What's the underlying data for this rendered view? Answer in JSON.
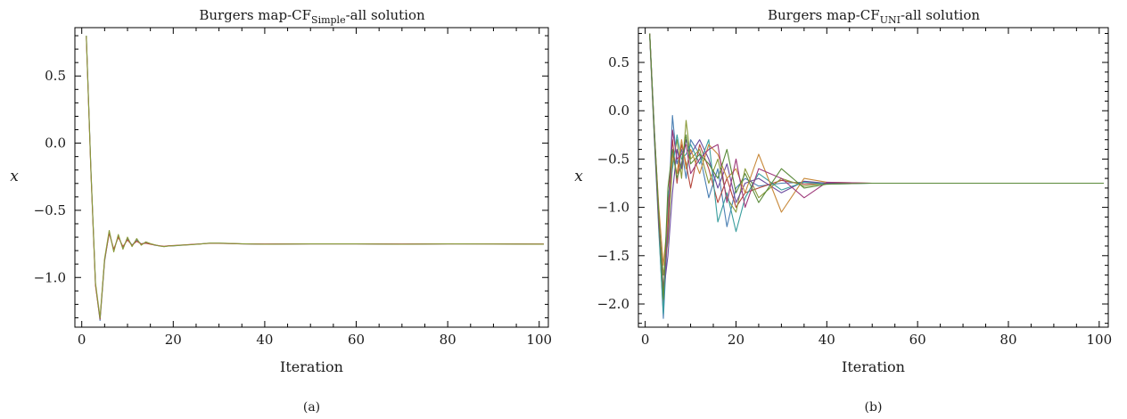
{
  "charts": [
    {
      "title_prefix": "Burgers map-CF",
      "title_sub": "Simple",
      "title_suffix": "-all solution",
      "caption": "(a)"
    },
    {
      "title_prefix": "Burgers map-CF",
      "title_sub": "UNI",
      "title_suffix": "-all solution",
      "caption": "(b)"
    }
  ],
  "chart_data": [
    {
      "type": "line",
      "title": "Burgers map-CFSimple-all solution",
      "xlabel": "Iteration",
      "ylabel": "x",
      "xlim": [
        -1.5,
        102
      ],
      "ylim": [
        -1.37,
        0.86
      ],
      "xticks": [
        0,
        20,
        40,
        60,
        80,
        100
      ],
      "xtick_labels": [
        "0",
        "20",
        "40",
        "60",
        "80",
        "100"
      ],
      "yticks": [
        0.5,
        0.0,
        -0.5,
        -1.0
      ],
      "ytick_labels": [
        "0.5",
        "0.0",
        "−0.5",
        "−1.0"
      ],
      "grid": false,
      "legend": "none",
      "series": [
        {
          "color": "#4a7fb3",
          "x": [
            1,
            2,
            3,
            4,
            5,
            6,
            7,
            8,
            9,
            10,
            11,
            12,
            13,
            14,
            15,
            16,
            17,
            18,
            19,
            20,
            22,
            24,
            26,
            28,
            30,
            35,
            40,
            50,
            60,
            70,
            80,
            90,
            101
          ],
          "y": [
            0.8,
            -0.2,
            -1.05,
            -1.32,
            -0.88,
            -0.66,
            -0.8,
            -0.69,
            -0.78,
            -0.71,
            -0.76,
            -0.72,
            -0.75,
            -0.74,
            -0.75,
            -0.76,
            -0.765,
            -0.77,
            -0.765,
            -0.765,
            -0.76,
            -0.755,
            -0.75,
            -0.745,
            -0.745,
            -0.75,
            -0.752,
            -0.75,
            -0.75,
            -0.752,
            -0.75,
            -0.75,
            -0.752
          ]
        },
        {
          "color": "#b5463c",
          "x": [
            1,
            2,
            3,
            4,
            5,
            6,
            7,
            8,
            9,
            10,
            11,
            12,
            13,
            14,
            15,
            16,
            17,
            18,
            19,
            20,
            22,
            24,
            26,
            28,
            30,
            35,
            40,
            50,
            60,
            70,
            80,
            90,
            101
          ],
          "y": [
            0.79,
            -0.22,
            -1.06,
            -1.31,
            -0.87,
            -0.67,
            -0.79,
            -0.7,
            -0.77,
            -0.72,
            -0.76,
            -0.73,
            -0.75,
            -0.745,
            -0.752,
            -0.758,
            -0.764,
            -0.768,
            -0.764,
            -0.762,
            -0.758,
            -0.754,
            -0.75,
            -0.746,
            -0.746,
            -0.75,
            -0.751,
            -0.75,
            -0.75,
            -0.751,
            -0.75,
            -0.75,
            -0.751
          ]
        },
        {
          "color": "#8a9a3a",
          "x": [
            1,
            2,
            3,
            4,
            5,
            6,
            7,
            8,
            9,
            10,
            11,
            12,
            13,
            14,
            15,
            16,
            17,
            18,
            19,
            20,
            22,
            24,
            26,
            28,
            30,
            35,
            40,
            50,
            60,
            70,
            80,
            90,
            101
          ],
          "y": [
            0.8,
            -0.21,
            -1.04,
            -1.3,
            -0.86,
            -0.65,
            -0.81,
            -0.68,
            -0.79,
            -0.7,
            -0.77,
            -0.71,
            -0.76,
            -0.735,
            -0.748,
            -0.757,
            -0.766,
            -0.771,
            -0.766,
            -0.764,
            -0.759,
            -0.756,
            -0.751,
            -0.744,
            -0.744,
            -0.749,
            -0.753,
            -0.75,
            -0.75,
            -0.753,
            -0.75,
            -0.751,
            -0.752
          ]
        }
      ]
    },
    {
      "type": "line",
      "title": "Burgers map-CFUNI-all solution",
      "xlabel": "Iteration",
      "ylabel": "x",
      "xlim": [
        -1.5,
        102
      ],
      "ylim": [
        -2.24,
        0.86
      ],
      "xticks": [
        0,
        20,
        40,
        60,
        80,
        100
      ],
      "xtick_labels": [
        "0",
        "20",
        "40",
        "60",
        "80",
        "100"
      ],
      "yticks": [
        0.5,
        0.0,
        -0.5,
        -1.0,
        -1.5,
        -2.0
      ],
      "ytick_labels": [
        "0.5",
        "0.0",
        "−0.5",
        "−1.0",
        "−1.5",
        "−2.0"
      ],
      "grid": false,
      "legend": "none",
      "series": [
        {
          "color": "#4a7fb3",
          "x": [
            1,
            2,
            3,
            4,
            5,
            6,
            7,
            8,
            9,
            10,
            12,
            14,
            16,
            18,
            20,
            22,
            25,
            30,
            35,
            40,
            50,
            60,
            80,
            101
          ],
          "y": [
            0.8,
            -0.2,
            -1.2,
            -2.15,
            -1.2,
            -0.05,
            -0.55,
            -0.4,
            -0.7,
            -0.3,
            -0.45,
            -0.9,
            -0.6,
            -1.2,
            -0.8,
            -0.7,
            -0.78,
            -0.75,
            -0.74,
            -0.75,
            -0.75,
            -0.75,
            -0.75,
            -0.75
          ]
        },
        {
          "color": "#b5463c",
          "x": [
            1,
            2,
            3,
            4,
            5,
            6,
            7,
            8,
            9,
            10,
            12,
            14,
            16,
            18,
            20,
            22,
            25,
            30,
            35,
            40,
            50,
            60,
            80,
            101
          ],
          "y": [
            0.78,
            -0.25,
            -1.1,
            -2.0,
            -1.0,
            -0.3,
            -0.75,
            -0.35,
            -0.55,
            -0.8,
            -0.35,
            -0.6,
            -0.95,
            -0.7,
            -1.0,
            -0.85,
            -0.8,
            -0.72,
            -0.76,
            -0.75,
            -0.75,
            -0.75,
            -0.75,
            -0.75
          ]
        },
        {
          "color": "#8a9a3a",
          "x": [
            1,
            2,
            3,
            4,
            5,
            6,
            7,
            8,
            9,
            10,
            12,
            14,
            16,
            18,
            20,
            22,
            25,
            30,
            35,
            40,
            50,
            60,
            80,
            101
          ],
          "y": [
            0.79,
            -0.22,
            -1.15,
            -1.7,
            -1.35,
            -0.55,
            -0.3,
            -0.7,
            -0.1,
            -0.5,
            -0.4,
            -0.75,
            -0.5,
            -0.9,
            -1.05,
            -0.6,
            -0.9,
            -0.7,
            -0.78,
            -0.75,
            -0.75,
            -0.75,
            -0.75,
            -0.75
          ]
        },
        {
          "color": "#6a4a9e",
          "x": [
            1,
            2,
            3,
            4,
            5,
            6,
            7,
            8,
            9,
            10,
            12,
            14,
            16,
            18,
            20,
            22,
            25,
            30,
            35,
            40,
            50,
            60,
            80,
            101
          ],
          "y": [
            0.8,
            -0.18,
            -1.05,
            -1.9,
            -1.5,
            -0.85,
            -0.4,
            -0.6,
            -0.3,
            -0.45,
            -0.3,
            -0.5,
            -0.8,
            -0.55,
            -0.95,
            -0.75,
            -0.7,
            -0.85,
            -0.73,
            -0.75,
            -0.75,
            -0.75,
            -0.75,
            -0.75
          ]
        },
        {
          "color": "#3a9e9e",
          "x": [
            1,
            2,
            3,
            4,
            5,
            6,
            7,
            8,
            9,
            10,
            12,
            14,
            16,
            18,
            20,
            22,
            25,
            30,
            35,
            40,
            50,
            60,
            80,
            101
          ],
          "y": [
            0.77,
            -0.28,
            -1.25,
            -2.1,
            -0.9,
            -0.6,
            -0.25,
            -0.5,
            -0.45,
            -0.35,
            -0.55,
            -0.3,
            -1.15,
            -0.85,
            -1.25,
            -0.9,
            -0.65,
            -0.82,
            -0.74,
            -0.76,
            -0.75,
            -0.75,
            -0.75,
            -0.75
          ]
        },
        {
          "color": "#c8893a",
          "x": [
            1,
            2,
            3,
            4,
            5,
            6,
            7,
            8,
            9,
            10,
            12,
            14,
            16,
            18,
            20,
            22,
            25,
            30,
            35,
            40,
            50,
            60,
            80,
            101
          ],
          "y": [
            0.8,
            -0.21,
            -1.0,
            -1.6,
            -1.1,
            -0.45,
            -0.65,
            -0.3,
            -0.6,
            -0.4,
            -0.65,
            -0.35,
            -0.45,
            -0.7,
            -0.6,
            -0.85,
            -0.45,
            -1.05,
            -0.7,
            -0.74,
            -0.75,
            -0.75,
            -0.75,
            -0.75
          ]
        },
        {
          "color": "#9e3a7a",
          "x": [
            1,
            2,
            3,
            4,
            5,
            6,
            7,
            8,
            9,
            10,
            12,
            14,
            16,
            18,
            20,
            22,
            25,
            30,
            35,
            40,
            50,
            60,
            80,
            101
          ],
          "y": [
            0.79,
            -0.24,
            -1.18,
            -1.85,
            -1.25,
            -0.2,
            -0.5,
            -0.45,
            -0.35,
            -0.65,
            -0.5,
            -0.4,
            -0.35,
            -0.95,
            -0.5,
            -1.0,
            -0.6,
            -0.7,
            -0.9,
            -0.74,
            -0.75,
            -0.75,
            -0.75,
            -0.75
          ]
        },
        {
          "color": "#5a8a3a",
          "x": [
            1,
            2,
            3,
            4,
            5,
            6,
            7,
            8,
            9,
            10,
            12,
            14,
            16,
            18,
            20,
            22,
            25,
            30,
            35,
            40,
            50,
            60,
            80,
            101
          ],
          "y": [
            0.8,
            -0.2,
            -1.08,
            -1.95,
            -0.8,
            -0.4,
            -0.7,
            -0.55,
            -0.25,
            -0.55,
            -0.45,
            -0.55,
            -0.7,
            -0.4,
            -0.85,
            -0.65,
            -0.95,
            -0.6,
            -0.8,
            -0.76,
            -0.75,
            -0.75,
            -0.75,
            -0.75
          ]
        }
      ]
    }
  ]
}
